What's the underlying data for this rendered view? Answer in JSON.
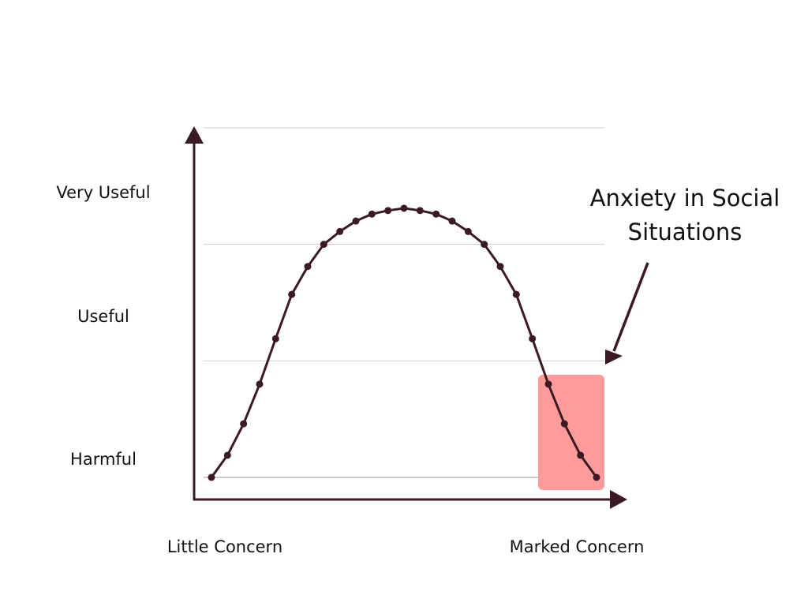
{
  "chart_data": {
    "type": "line",
    "y_tick_labels": [
      "Harmful",
      "Useful",
      "Very Useful"
    ],
    "x_tick_labels": [
      "Little Concern",
      "Marked Concern"
    ],
    "x": [
      0,
      1,
      2,
      3,
      4,
      5,
      6,
      7,
      8,
      9,
      10,
      11,
      12,
      13,
      14,
      15,
      16,
      17,
      18,
      19,
      20,
      21,
      22,
      23,
      24
    ],
    "y": [
      0,
      0.19,
      0.46,
      0.8,
      1.19,
      1.57,
      1.81,
      2.0,
      2.11,
      2.2,
      2.26,
      2.29,
      2.31,
      2.29,
      2.26,
      2.2,
      2.11,
      2.0,
      1.81,
      1.57,
      1.19,
      0.8,
      0.46,
      0.19,
      0
    ],
    "ylim": [
      0,
      3
    ],
    "xlim": [
      0,
      24
    ],
    "grid": true,
    "annotation": {
      "lines": [
        "Anxiety in Social",
        "Situations"
      ],
      "highlight_x_range": [
        21,
        24
      ]
    }
  },
  "colors": {
    "line": "#3b1a24",
    "axis": "#3b1a24",
    "grid": "#cccccc",
    "highlight": "#ff9b9b",
    "text": "#111111"
  }
}
